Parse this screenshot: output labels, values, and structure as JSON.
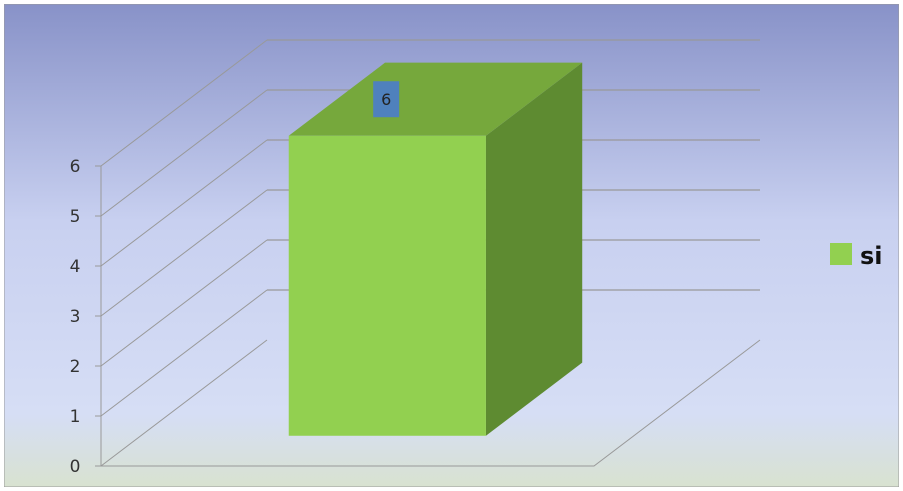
{
  "chart_data": {
    "type": "bar",
    "three_d": true,
    "categories": [
      ""
    ],
    "series": [
      {
        "name": "si",
        "values": [
          6
        ]
      }
    ],
    "data_labels": [
      "6"
    ],
    "yticks": [
      "0",
      "1",
      "2",
      "3",
      "4",
      "5",
      "6"
    ],
    "ylim": [
      0,
      6
    ],
    "grid": true,
    "legend": {
      "position": "right",
      "entries": [
        "si"
      ]
    },
    "title": "",
    "xlabel": "",
    "ylabel": ""
  },
  "colors": {
    "bar_front": "#92d050",
    "bar_side": "#5e8b31",
    "bar_top": "#76a83c",
    "data_label_bg": "#4f81bd",
    "legend_swatch": "#92d050",
    "background_top": "#8892c8",
    "background_mid": "#c8d0f0",
    "background_bottom": "#d8e2d0",
    "gridline": "#999999"
  }
}
